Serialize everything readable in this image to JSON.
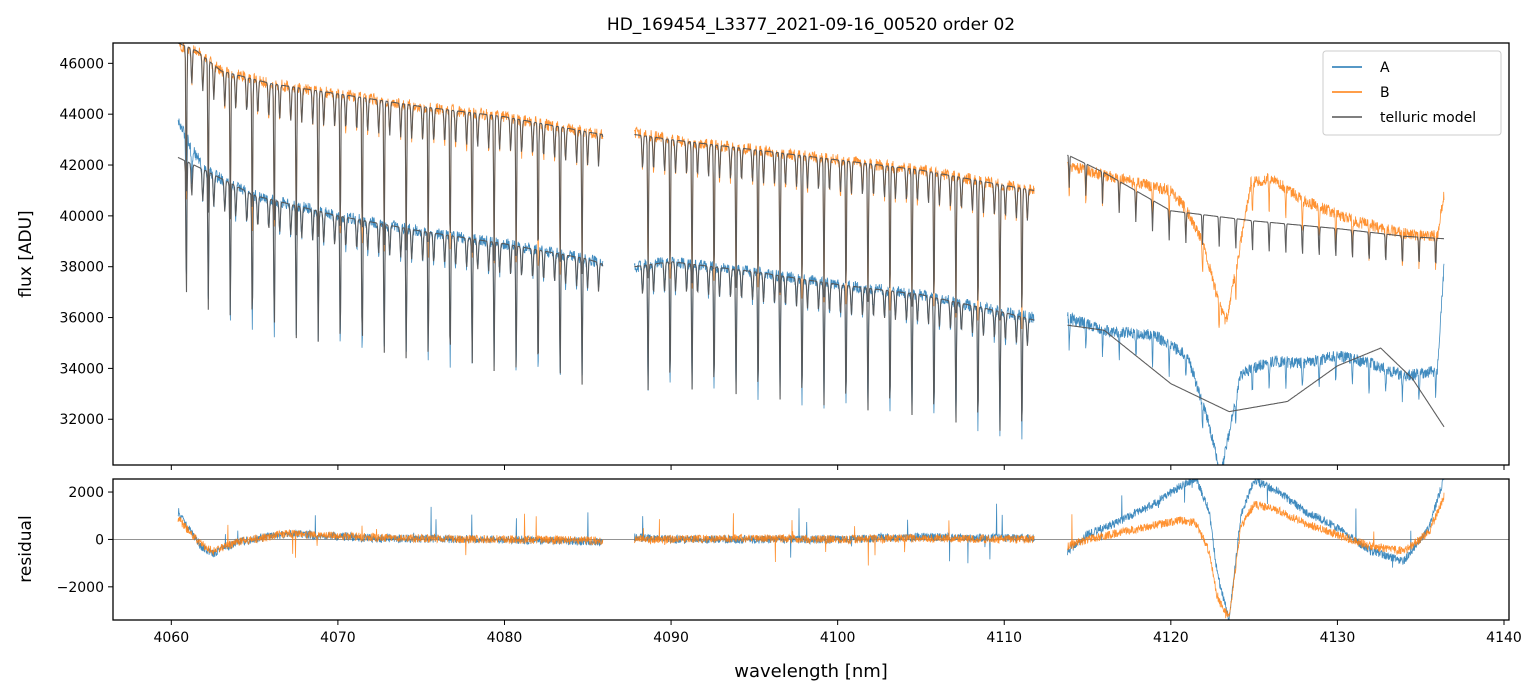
{
  "chart_data": {
    "type": "line",
    "title": "HD_169454_L3377_2021-09-16_00520  order 02",
    "xlabel": "wavelength [nm]",
    "x_ticks": [
      4060,
      4070,
      4080,
      4090,
      4100,
      4110,
      4120,
      4130,
      4140
    ],
    "xlim": [
      4056.5,
      4140.3
    ],
    "panels": [
      {
        "id": "flux",
        "ylabel": "flux [ADU]",
        "ylim": [
          30200,
          46800
        ],
        "y_ticks": [
          32000,
          34000,
          36000,
          38000,
          40000,
          42000,
          44000,
          46000
        ],
        "grid": false,
        "legend": {
          "placement": "top-right",
          "entries": [
            {
              "label": "A",
              "color": "#1f77b4"
            },
            {
              "label": "B",
              "color": "#ff7f0e"
            },
            {
              "label": "telluric model",
              "color": "#555555"
            }
          ]
        },
        "series": [
          {
            "name": "A",
            "color": "#1f77b4",
            "segments": [
              {
                "x": [
                  4060.4,
                  4062,
                  4065,
                  4070,
                  4075,
                  4080,
                  4085,
                  4085.9
                ],
                "y": [
                  43700,
                  41800,
                  40800,
                  40000,
                  39400,
                  38900,
                  38300,
                  38100
                ],
                "dips": "deep"
              },
              {
                "x": [
                  4087.8,
                  4090,
                  4095,
                  4100,
                  4105,
                  4110,
                  4111.8
                ],
                "y": [
                  38000,
                  38200,
                  37800,
                  37300,
                  36900,
                  36200,
                  36000
                ],
                "dips": "deep"
              },
              {
                "x": [
                  4113.8,
                  4116,
                  4119,
                  4121,
                  4122.3,
                  4123.0,
                  4124.2,
                  4126,
                  4128,
                  4130,
                  4132,
                  4134,
                  4136,
                  4136.4
                ],
                "y": [
                  36000,
                  35500,
                  35300,
                  34500,
                  31800,
                  29800,
                  33800,
                  34300,
                  34200,
                  34500,
                  34200,
                  33700,
                  33900,
                  38000
                ],
                "dips": "weak"
              }
            ]
          },
          {
            "name": "B",
            "color": "#ff7f0e",
            "segments": [
              {
                "x": [
                  4060.5,
                  4061.5,
                  4063,
                  4066,
                  4070,
                  4075,
                  4080,
                  4085,
                  4085.9
                ],
                "y": [
                  46700,
                  46500,
                  45700,
                  45200,
                  44800,
                  44300,
                  43900,
                  43300,
                  43200
                ],
                "dips": "deep"
              },
              {
                "x": [
                  4087.8,
                  4090,
                  4095,
                  4100,
                  4105,
                  4110,
                  4111.8
                ],
                "y": [
                  43300,
                  43000,
                  42600,
                  42200,
                  41800,
                  41200,
                  41000
                ],
                "dips": "deep"
              },
              {
                "x": [
                  4113.8,
                  4116,
                  4118,
                  4120,
                  4121,
                  4122,
                  4122.8,
                  4123.3,
                  4124,
                  4124.8,
                  4126,
                  4128,
                  4131,
                  4134,
                  4136,
                  4136.4
                ],
                "y": [
                  42000,
                  41600,
                  41300,
                  41000,
                  40200,
                  38800,
                  36800,
                  35800,
                  38200,
                  41300,
                  41500,
                  40600,
                  39800,
                  39300,
                  39200,
                  40800
                ],
                "dips": "weak"
              }
            ]
          },
          {
            "name": "telluric model",
            "color": "#555555",
            "segments": [
              {
                "x": [
                  4060.4,
                  4062,
                  4065,
                  4070,
                  4075,
                  4080,
                  4085,
                  4085.9
                ],
                "y": [
                  42300,
                  41800,
                  40800,
                  40000,
                  39400,
                  38900,
                  38300,
                  38100
                ],
                "dips": "deep"
              },
              {
                "x": [
                  4060.4,
                  4061.5,
                  4063,
                  4066,
                  4070,
                  4075,
                  4080,
                  4085,
                  4085.9
                ],
                "y": [
                  46800,
                  46500,
                  45700,
                  45200,
                  44800,
                  44300,
                  43900,
                  43300,
                  43200
                ],
                "dips": "deep"
              },
              {
                "x": [
                  4087.8,
                  4090,
                  4095,
                  4100,
                  4105,
                  4110,
                  4111.8
                ],
                "y": [
                  38000,
                  38200,
                  37800,
                  37300,
                  36900,
                  36200,
                  35900
                ],
                "dips": "deep"
              },
              {
                "x": [
                  4087.8,
                  4090,
                  4095,
                  4100,
                  4105,
                  4110,
                  4111.8
                ],
                "y": [
                  43200,
                  43000,
                  42600,
                  42200,
                  41800,
                  41200,
                  41000
                ],
                "dips": "deep"
              },
              {
                "x": [
                  4113.8,
                  4116,
                  4120,
                  4123.5,
                  4127,
                  4130,
                  4132.6,
                  4134.5,
                  4136.4
                ],
                "y": [
                  35700,
                  35500,
                  33400,
                  32300,
                  32700,
                  34100,
                  34800,
                  33600,
                  31700
                ],
                "dips": "none"
              },
              {
                "x": [
                  4113.8,
                  4116,
                  4120,
                  4125,
                  4130,
                  4134,
                  4136.4
                ],
                "y": [
                  42400,
                  41700,
                  40200,
                  39800,
                  39500,
                  39200,
                  39100
                ],
                "dips": "weak"
              }
            ]
          }
        ]
      },
      {
        "id": "residual",
        "ylabel": "residual",
        "ylim": [
          -3400,
          2550
        ],
        "y_ticks": [
          -2000,
          0,
          2000
        ],
        "zero_line": true,
        "series": [
          {
            "name": "A",
            "color": "#1f77b4",
            "segments": [
              {
                "x": [
                  4060.4,
                  4061,
                  4061.8,
                  4062.5,
                  4064,
                  4067,
                  4072,
                  4080,
                  4085.9
                ],
                "y": [
                  1200,
                  500,
                  -300,
                  -600,
                  -100,
                  250,
                  50,
                  0,
                  -100
                ]
              },
              {
                "x": [
                  4087.8,
                  4090,
                  4095,
                  4100,
                  4105,
                  4111.8
                ],
                "y": [
                  100,
                  0,
                  0,
                  0,
                  100,
                  50
                ]
              },
              {
                "x": [
                  4113.8,
                  4115,
                  4117,
                  4119,
                  4120.5,
                  4121.5,
                  4122.3,
                  4122.8,
                  4123.5,
                  4124.2,
                  4125,
                  4126.5,
                  4128,
                  4130,
                  4132,
                  4134,
                  4135.5,
                  4136.4
                ],
                "y": [
                  -500,
                  200,
                  800,
                  1500,
                  2200,
                  2600,
                  1200,
                  -1500,
                  -3400,
                  1000,
                  2500,
                  2000,
                  1200,
                  500,
                  -500,
                  -900,
                  500,
                  2600
                ]
              }
            ]
          },
          {
            "name": "B",
            "color": "#ff7f0e",
            "segments": [
              {
                "x": [
                  4060.4,
                  4061,
                  4061.8,
                  4062.5,
                  4064,
                  4067,
                  4072,
                  4080,
                  4085.9
                ],
                "y": [
                  900,
                  400,
                  -200,
                  -500,
                  -100,
                  250,
                  80,
                  0,
                  -50
                ]
              },
              {
                "x": [
                  4087.8,
                  4090,
                  4095,
                  4100,
                  4105,
                  4111.8
                ],
                "y": [
                  0,
                  0,
                  50,
                  0,
                  50,
                  0
                ]
              },
              {
                "x": [
                  4113.8,
                  4115,
                  4117,
                  4119,
                  4120.5,
                  4121.5,
                  4122.3,
                  4122.8,
                  4123.5,
                  4124.2,
                  4125,
                  4126.5,
                  4128,
                  4130,
                  4132,
                  4134,
                  4135.5,
                  4136.4
                ],
                "y": [
                  -300,
                  0,
                  300,
                  600,
                  800,
                  700,
                  -500,
                  -2500,
                  -3300,
                  500,
                  1500,
                  1200,
                  700,
                  200,
                  -300,
                  -500,
                  300,
                  1800
                ]
              }
            ]
          }
        ]
      }
    ]
  }
}
